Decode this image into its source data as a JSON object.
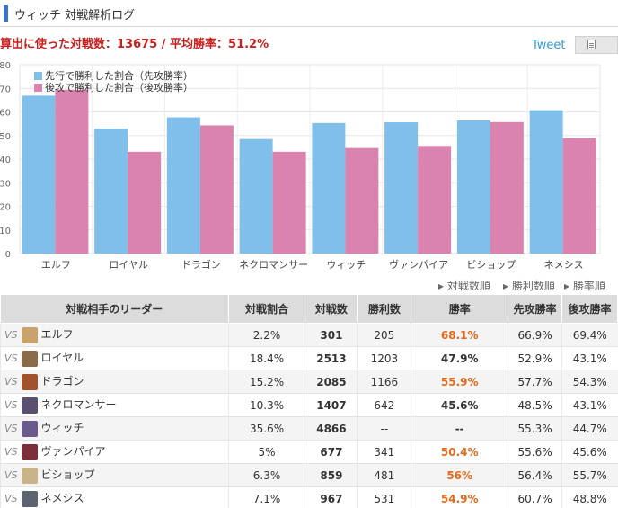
{
  "header": {
    "title": "ウィッチ 対戦解析ログ"
  },
  "summary": {
    "text": "算出に使った対戦数：13675 / 平均勝率：51.2%"
  },
  "social": {
    "tweet_label": "Tweet",
    "share_icon": "document-icon"
  },
  "colors": {
    "first": "#7fbfea",
    "second": "#d983ae",
    "accent": "#3a73c7",
    "highlight": "#e26a1c"
  },
  "chart_data": {
    "type": "bar",
    "categories": [
      "エルフ",
      "ロイヤル",
      "ドラゴン",
      "ネクロマンサー",
      "ウィッチ",
      "ヴァンパイア",
      "ビショップ",
      "ネメシス"
    ],
    "series": [
      {
        "name": "先行で勝利した割合（先攻勝率）",
        "color": "#7fbfea",
        "values": [
          66.9,
          52.9,
          57.7,
          48.5,
          55.3,
          55.6,
          56.4,
          60.7
        ]
      },
      {
        "name": "後攻で勝利した割合（後攻勝率）",
        "color": "#d983ae",
        "values": [
          69.4,
          43.1,
          54.3,
          43.1,
          44.7,
          45.6,
          55.7,
          48.8
        ]
      }
    ],
    "yticks": [
      "0",
      "10",
      "20",
      "30",
      "40",
      "50",
      "60",
      "70",
      "80"
    ],
    "ylim": [
      0,
      80
    ],
    "grid": true,
    "legend": "top-left"
  },
  "sort_links": [
    "対戦数順",
    "勝利数順",
    "勝率順"
  ],
  "table": {
    "headers": [
      "対戦相手のリーダー",
      "対戦割合",
      "対戦数",
      "勝利数",
      "勝率",
      "先攻勝率",
      "後攻勝率"
    ],
    "vs_label": "VS",
    "rows": [
      {
        "name": "エルフ",
        "share": "2.2%",
        "games": "301",
        "wins": "205",
        "rate": "68.1%",
        "first": "66.9%",
        "second": "69.4%",
        "highlight": true,
        "avatar": "#c9a36d"
      },
      {
        "name": "ロイヤル",
        "share": "18.4%",
        "games": "2513",
        "wins": "1203",
        "rate": "47.9%",
        "first": "52.9%",
        "second": "43.1%",
        "highlight": false,
        "avatar": "#8a6b4a"
      },
      {
        "name": "ドラゴン",
        "share": "15.2%",
        "games": "2085",
        "wins": "1166",
        "rate": "55.9%",
        "first": "57.7%",
        "second": "54.3%",
        "highlight": true,
        "avatar": "#a0522d"
      },
      {
        "name": "ネクロマンサー",
        "share": "10.3%",
        "games": "1407",
        "wins": "642",
        "rate": "45.6%",
        "first": "48.5%",
        "second": "43.1%",
        "highlight": false,
        "avatar": "#5a4f6e"
      },
      {
        "name": "ウィッチ",
        "share": "35.6%",
        "games": "4866",
        "wins": "--",
        "rate": "--",
        "first": "55.3%",
        "second": "44.7%",
        "highlight": false,
        "avatar": "#6b5b8c"
      },
      {
        "name": "ヴァンパイア",
        "share": "5%",
        "games": "677",
        "wins": "341",
        "rate": "50.4%",
        "first": "55.6%",
        "second": "45.6%",
        "highlight": true,
        "avatar": "#7a2e3a"
      },
      {
        "name": "ビショップ",
        "share": "6.3%",
        "games": "859",
        "wins": "481",
        "rate": "56%",
        "first": "56.4%",
        "second": "55.7%",
        "highlight": true,
        "avatar": "#c9b48a"
      },
      {
        "name": "ネメシス",
        "share": "7.1%",
        "games": "967",
        "wins": "531",
        "rate": "54.9%",
        "first": "60.7%",
        "second": "48.8%",
        "highlight": true,
        "avatar": "#5c6470"
      }
    ]
  }
}
